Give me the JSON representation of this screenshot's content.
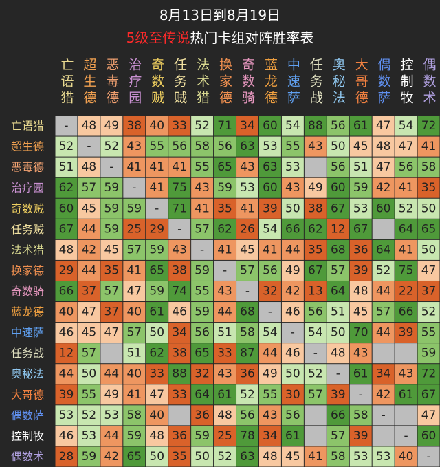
{
  "header": {
    "date": "8月13日到8月19日",
    "title_highlight": "5级至传说",
    "title_rest": "热门卡组对阵胜率表"
  },
  "table": {
    "decks": [
      "亡语猎",
      "超生德",
      "恶毒德",
      "治疗园",
      "奇数贼",
      "任务贼",
      "法术猎",
      "换家德",
      "奇数骑",
      "蓝龙德",
      "中速萨",
      "任务战",
      "奥秘法",
      "大哥德",
      "偶数萨",
      "控制牧",
      "偶数术"
    ],
    "deck_colors": [
      "#e8d890",
      "#f0a050",
      "#f0a070",
      "#c890d0",
      "#f0d060",
      "#f0e0a0",
      "#d8d890",
      "#f09050",
      "#e898c0",
      "#f0a040",
      "#60a0f0",
      "#e0e0c0",
      "#90c8f0",
      "#f08040",
      "#6090f0",
      "#ffffff",
      "#b0a0e0"
    ],
    "rows": [
      [
        "-",
        48,
        49,
        38,
        40,
        33,
        52,
        71,
        34,
        60,
        54,
        88,
        56,
        61,
        47,
        54,
        72
      ],
      [
        52,
        "-",
        52,
        43,
        55,
        56,
        58,
        56,
        63,
        53,
        55,
        43,
        50,
        45,
        48,
        47,
        41
      ],
      [
        51,
        48,
        "-",
        41,
        41,
        41,
        55,
        65,
        43,
        63,
        53,
        null,
        56,
        51,
        47,
        56,
        58
      ],
      [
        62,
        57,
        59,
        "-",
        41,
        75,
        43,
        59,
        53,
        60,
        43,
        49,
        60,
        59,
        42,
        41,
        35
      ],
      [
        60,
        45,
        59,
        59,
        "-",
        71,
        41,
        35,
        41,
        39,
        50,
        38,
        67,
        53,
        60,
        52,
        50
      ],
      [
        67,
        44,
        59,
        25,
        29,
        "-",
        57,
        62,
        26,
        54,
        66,
        62,
        12,
        67,
        null,
        64,
        65
      ],
      [
        48,
        42,
        45,
        57,
        59,
        43,
        "-",
        41,
        45,
        41,
        44,
        35,
        68,
        36,
        64,
        41,
        50
      ],
      [
        29,
        44,
        35,
        41,
        65,
        38,
        59,
        "-",
        57,
        56,
        49,
        67,
        57,
        39,
        52,
        75,
        47
      ],
      [
        66,
        37,
        57,
        47,
        59,
        74,
        55,
        43,
        "-",
        32,
        42,
        13,
        64,
        48,
        44,
        22,
        37
      ],
      [
        40,
        47,
        37,
        40,
        61,
        46,
        59,
        44,
        68,
        "-",
        46,
        56,
        51,
        45,
        57,
        66,
        52
      ],
      [
        46,
        45,
        47,
        57,
        50,
        34,
        56,
        51,
        58,
        54,
        "-",
        54,
        50,
        70,
        44,
        39,
        55
      ],
      [
        12,
        57,
        null,
        51,
        62,
        38,
        65,
        33,
        87,
        44,
        46,
        "-",
        48,
        43,
        null,
        null,
        59
      ],
      [
        44,
        50,
        44,
        40,
        33,
        88,
        32,
        43,
        36,
        49,
        50,
        52,
        "-",
        61,
        34,
        43,
        72
      ],
      [
        39,
        55,
        49,
        41,
        47,
        33,
        64,
        61,
        52,
        55,
        30,
        57,
        39,
        "-",
        42,
        61,
        67
      ],
      [
        53,
        52,
        53,
        58,
        40,
        null,
        36,
        48,
        56,
        43,
        56,
        null,
        66,
        58,
        "-",
        null,
        47
      ],
      [
        46,
        53,
        44,
        59,
        48,
        36,
        59,
        25,
        78,
        34,
        61,
        null,
        57,
        39,
        null,
        "-",
        60
      ],
      [
        28,
        59,
        42,
        65,
        50,
        35,
        50,
        52,
        63,
        48,
        45,
        41,
        58,
        53,
        53,
        40,
        "-"
      ]
    ],
    "color_steps": [
      [
        60,
        "#4f9a3a"
      ],
      [
        55,
        "#8cc46a"
      ],
      [
        50,
        "#c8e6b0"
      ],
      [
        45,
        "#f8c8a0"
      ],
      [
        40,
        "#ee9660"
      ],
      [
        0,
        "#d9622a"
      ]
    ],
    "empty_color": "#bdbdbd"
  }
}
